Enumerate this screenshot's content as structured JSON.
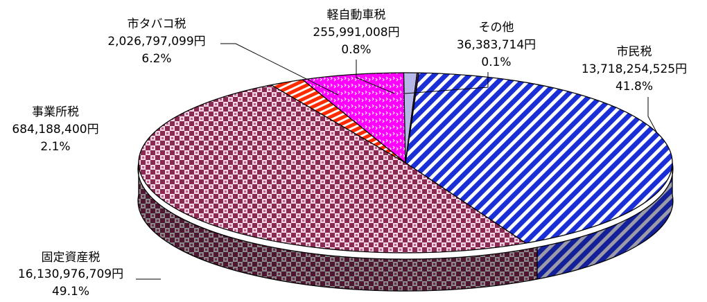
{
  "chart_data": {
    "type": "pie",
    "style": "3d",
    "legend": "none",
    "slices": [
      {
        "name": "市民税",
        "amount_label": "13,718,254,525円",
        "percent": 41.8,
        "percent_label": "41.8%",
        "color": "#1a2fd6",
        "pattern": "diagonal-stripes"
      },
      {
        "name": "固定資産税",
        "amount_label": "16,130,976,709円",
        "percent": 49.1,
        "percent_label": "49.1%",
        "color": "#8a2a52",
        "pattern": "checker"
      },
      {
        "name": "事業所税",
        "amount_label": "684,188,400円",
        "percent": 2.1,
        "percent_label": "2.1%",
        "color": "#ff2a00",
        "pattern": "horizontal-stripes"
      },
      {
        "name": "市タバコ税",
        "amount_label": "2,026,797,099円",
        "percent": 6.2,
        "percent_label": "6.2%",
        "color": "#ff00ff",
        "pattern": "dots"
      },
      {
        "name": "軽自動車税",
        "amount_label": "255,991,008円",
        "percent": 0.8,
        "percent_label": "0.8%",
        "color": "#b8b8e8",
        "pattern": "solid"
      },
      {
        "name": "その他",
        "amount_label": "36,383,714円",
        "percent": 0.1,
        "percent_label": "0.1%",
        "color": "#6a2a8a",
        "pattern": "solid"
      }
    ]
  }
}
